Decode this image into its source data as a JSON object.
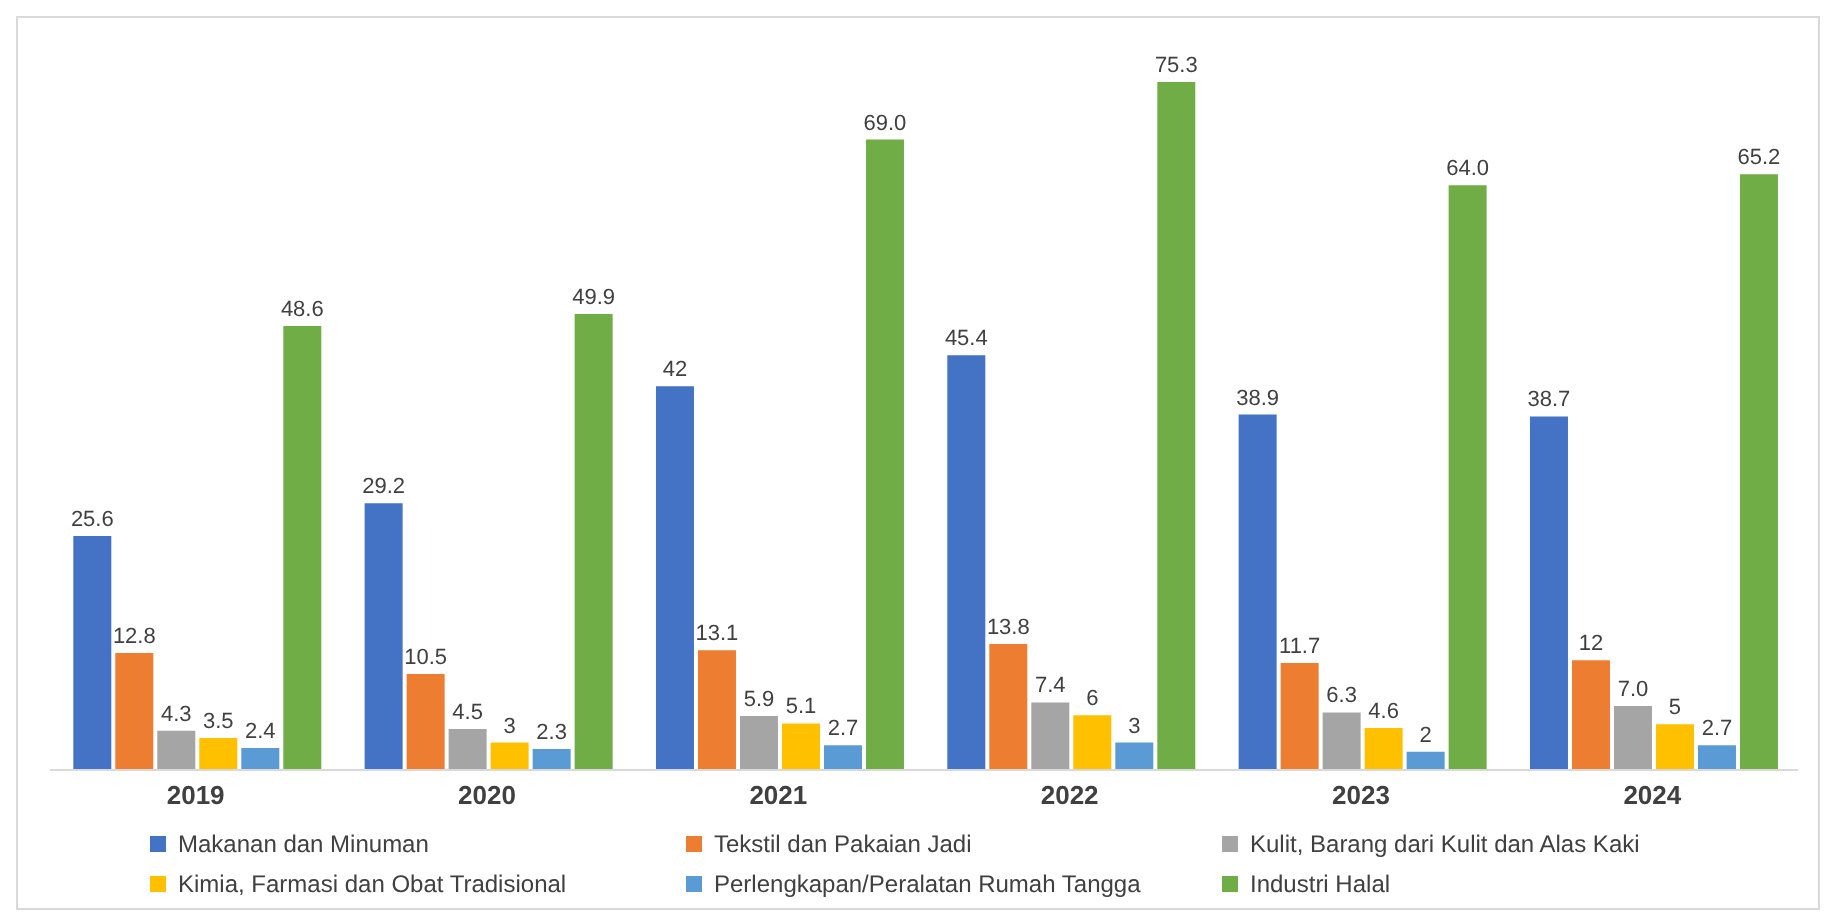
{
  "chart_data": {
    "type": "bar",
    "categories": [
      "2019",
      "2020",
      "2021",
      "2022",
      "2023",
      "2024"
    ],
    "tick_labels": "x",
    "legend": "bottom",
    "grid": false,
    "series": [
      {
        "name": "Makanan dan Minuman",
        "color": "#4472c4",
        "values": [
          25.6,
          29.2,
          42,
          45.4,
          38.9,
          38.7
        ],
        "value_labels": [
          "25.6",
          "29.2",
          "42",
          "45.4",
          "38.9",
          "38.7"
        ]
      },
      {
        "name": "Tekstil dan Pakaian Jadi",
        "color": "#ed7d31",
        "values": [
          12.8,
          10.5,
          13.1,
          13.8,
          11.7,
          12
        ],
        "value_labels": [
          "12.8",
          "10.5",
          "13.1",
          "13.8",
          "11.7",
          "12"
        ]
      },
      {
        "name": "Kulit, Barang dari Kulit dan Alas Kaki",
        "color": "#a5a5a5",
        "values": [
          4.3,
          4.5,
          5.9,
          7.4,
          6.3,
          7.0
        ],
        "value_labels": [
          "4.3",
          "4.5",
          "5.9",
          "7.4",
          "6.3",
          "7.0"
        ]
      },
      {
        "name": "Kimia, Farmasi dan Obat Tradisional",
        "color": "#ffc000",
        "values": [
          3.5,
          3,
          5.1,
          6,
          4.6,
          5
        ],
        "value_labels": [
          "3.5",
          "3",
          "5.1",
          "6",
          "4.6",
          "5"
        ]
      },
      {
        "name": "Perlengkapan/Peralatan Rumah Tangga",
        "color": "#5b9bd5",
        "values": [
          2.4,
          2.3,
          2.7,
          3,
          2,
          2.7
        ],
        "value_labels": [
          "2.4",
          "2.3",
          "2.7",
          "3",
          "2",
          "2.7"
        ]
      },
      {
        "name": "Industri Halal",
        "color": "#70ad47",
        "values": [
          48.6,
          49.9,
          69.0,
          75.3,
          64.0,
          65.2
        ],
        "value_labels": [
          "48.6",
          "49.9",
          "69.0",
          "75.3",
          "64.0",
          "65.2"
        ]
      }
    ]
  }
}
